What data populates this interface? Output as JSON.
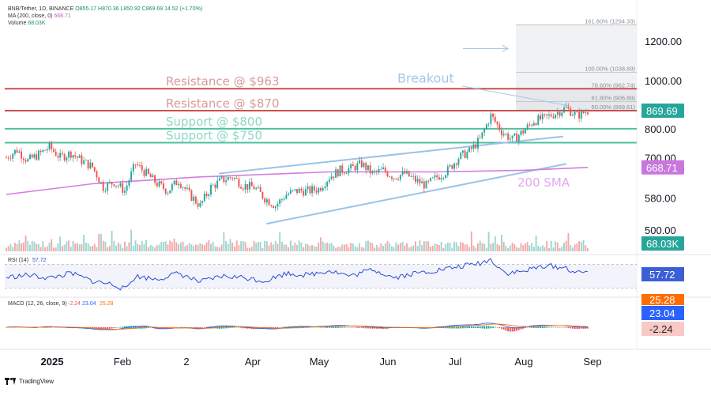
{
  "header": {
    "line1_prefix": "BNB/Tether, 1D, BINANCE",
    "line1_values": "O855.17 H870.36 L850.92 C869.69 14.52 (+1.70%)",
    "line2_prefix": "MA (200, close, 0)",
    "line2_value": "668.71",
    "line3_prefix": "Volume",
    "line3_value": "68.03K"
  },
  "footer": {
    "brand": "TradingView"
  },
  "colors": {
    "up": "#26a69a",
    "down": "#ef5350",
    "resistance": "#c9504f",
    "support": "#4fc0a0",
    "channel": "#9cc3e4",
    "sma": "#d27ee0",
    "rsi": "#2a4fd0",
    "macd": "#2962ff",
    "signal": "#ff6d00"
  },
  "chart_data": [
    {
      "type": "candlestick",
      "title": "BNB/Tether, 1D, BINANCE",
      "x_ticks": [
        "2025",
        "Feb",
        "2",
        "Apr",
        "May",
        "Jun",
        "Jul",
        "Aug",
        "Sep"
      ],
      "y_ticks": [
        500,
        580,
        700,
        800,
        1000,
        1200
      ],
      "y_scale": "log",
      "ylim": [
        450,
        1400
      ],
      "last_price": "869.69",
      "sma_200_label": "668.71",
      "close_path": [
        [
          0,
          700
        ],
        [
          5,
          725
        ],
        [
          10,
          690
        ],
        [
          15,
          710
        ],
        [
          20,
          735
        ],
        [
          25,
          700
        ],
        [
          30,
          715
        ],
        [
          35,
          690
        ],
        [
          40,
          670
        ],
        [
          45,
          610
        ],
        [
          50,
          625
        ],
        [
          55,
          600
        ],
        [
          60,
          680
        ],
        [
          65,
          650
        ],
        [
          70,
          620
        ],
        [
          75,
          600
        ],
        [
          80,
          630
        ],
        [
          85,
          590
        ],
        [
          90,
          560
        ],
        [
          95,
          610
        ],
        [
          100,
          630
        ],
        [
          105,
          640
        ],
        [
          110,
          615
        ],
        [
          115,
          610
        ],
        [
          120,
          580
        ],
        [
          125,
          560
        ],
        [
          130,
          590
        ],
        [
          135,
          600
        ],
        [
          140,
          600
        ],
        [
          145,
          605
        ],
        [
          150,
          640
        ],
        [
          155,
          660
        ],
        [
          160,
          665
        ],
        [
          165,
          680
        ],
        [
          170,
          650
        ],
        [
          175,
          660
        ],
        [
          180,
          640
        ],
        [
          185,
          650
        ],
        [
          190,
          630
        ],
        [
          195,
          615
        ],
        [
          200,
          640
        ],
        [
          205,
          660
        ],
        [
          210,
          700
        ],
        [
          215,
          720
        ],
        [
          220,
          760
        ],
        [
          225,
          850
        ],
        [
          230,
          790
        ],
        [
          235,
          760
        ],
        [
          240,
          790
        ],
        [
          245,
          830
        ],
        [
          250,
          840
        ],
        [
          255,
          860
        ],
        [
          260,
          880
        ],
        [
          265,
          850
        ],
        [
          270,
          869.69
        ]
      ],
      "series": [
        {
          "name": "MA (200, close, 0)",
          "values": [
            [
              0,
              590
            ],
            [
              40,
              620
            ],
            [
              90,
              640
            ],
            [
              150,
              655
            ],
            [
              200,
              655
            ],
            [
              240,
              660
            ],
            [
              270,
              668.71
            ]
          ]
        }
      ],
      "annotations": [
        {
          "text": "Resistance @ $963",
          "value": 963,
          "kind": "resistance"
        },
        {
          "text": "Resistance @ $870",
          "value": 870,
          "kind": "resistance"
        },
        {
          "text": "Support @ $800",
          "value": 800,
          "kind": "support"
        },
        {
          "text": "Support @ $750",
          "value": 750,
          "kind": "support"
        },
        {
          "text": "Breakout",
          "kind": "label"
        },
        {
          "text": "200 SMA",
          "kind": "label"
        }
      ],
      "fibonacci": [
        {
          "label": "161.80% (1294.33)",
          "value": 1294.33
        },
        {
          "label": "100.00% (1038.89)",
          "value": 1038.89
        },
        {
          "label": "78.60% (962.74)",
          "value": 962.74
        },
        {
          "label": "61.80% (906.89)",
          "value": 906.89
        },
        {
          "label": "50.00% (869.61)",
          "value": 869.61
        }
      ]
    },
    {
      "type": "bar",
      "title": "Volume",
      "last_value_label": "68.03K"
    },
    {
      "type": "line",
      "title": "RSI (14)",
      "last_value_label": "57.72",
      "ylim": [
        20,
        80
      ],
      "levels": [
        70,
        30
      ],
      "values": [
        [
          0,
          48
        ],
        [
          10,
          52
        ],
        [
          20,
          47
        ],
        [
          30,
          55
        ],
        [
          40,
          42
        ],
        [
          50,
          36
        ],
        [
          55,
          28
        ],
        [
          60,
          50
        ],
        [
          70,
          45
        ],
        [
          80,
          55
        ],
        [
          90,
          40
        ],
        [
          100,
          50
        ],
        [
          110,
          48
        ],
        [
          120,
          42
        ],
        [
          130,
          55
        ],
        [
          140,
          52
        ],
        [
          150,
          60
        ],
        [
          160,
          50
        ],
        [
          170,
          62
        ],
        [
          180,
          48
        ],
        [
          190,
          55
        ],
        [
          200,
          60
        ],
        [
          210,
          66
        ],
        [
          220,
          72
        ],
        [
          225,
          78
        ],
        [
          232,
          55
        ],
        [
          240,
          58
        ],
        [
          250,
          68
        ],
        [
          260,
          64
        ],
        [
          265,
          55
        ],
        [
          270,
          57.72
        ]
      ]
    },
    {
      "type": "line",
      "title": "MACD (12, 26, close, 9)",
      "header_values": [
        "-2.24",
        "23.04",
        "25.28"
      ],
      "series": [
        {
          "name": "MACD",
          "label": "23.04"
        },
        {
          "name": "Signal",
          "label": "25.28"
        },
        {
          "name": "Histogram",
          "label": "-2.24"
        }
      ]
    }
  ]
}
